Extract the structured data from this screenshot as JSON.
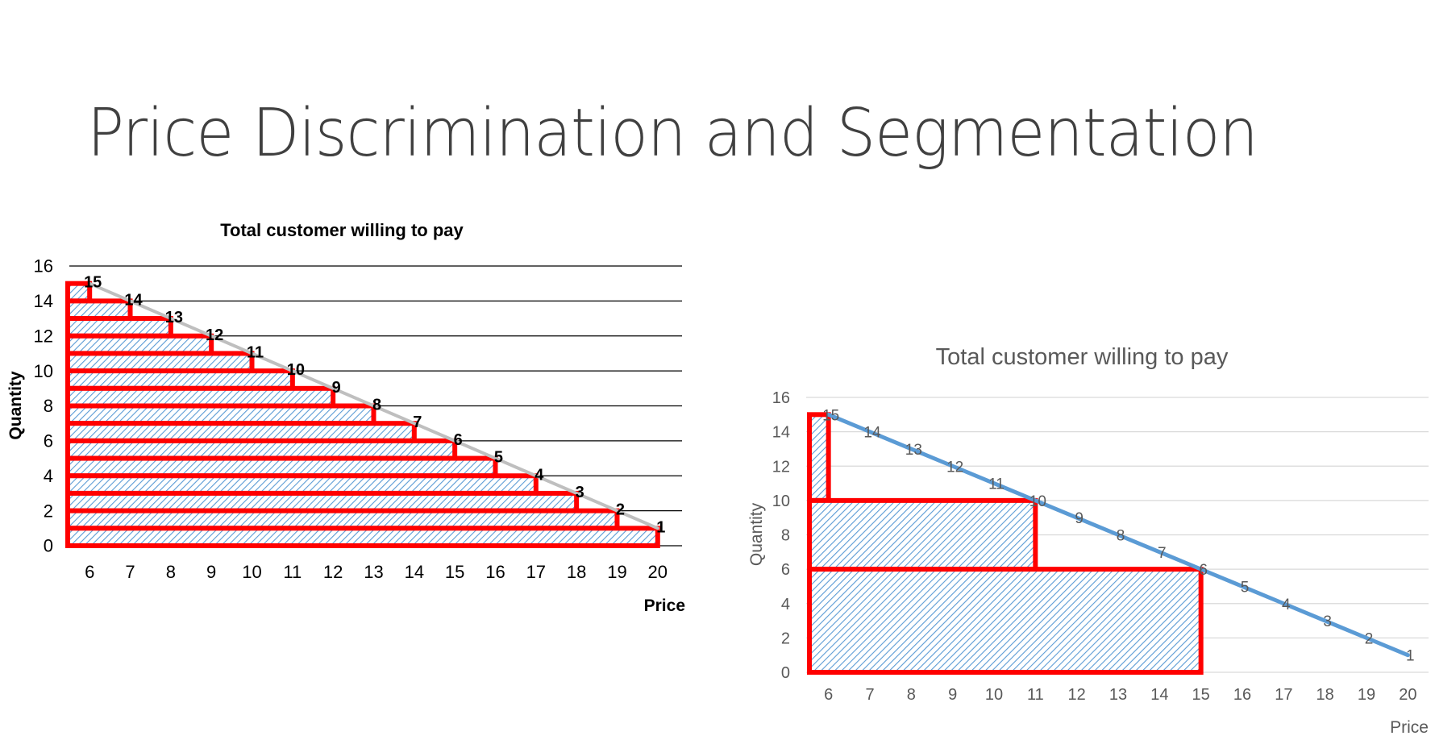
{
  "slide": {
    "title": "Price Discrimination and Segmentation"
  },
  "chart_data": [
    {
      "type": "area",
      "title": "Total customer willing to pay",
      "xlabel": "Price",
      "ylabel": "Quantity",
      "x": [
        6,
        7,
        8,
        9,
        10,
        11,
        12,
        13,
        14,
        15,
        16,
        17,
        18,
        19,
        20
      ],
      "xlim": [
        5.4,
        20.6
      ],
      "ylim": [
        0,
        16
      ],
      "yticks": [
        0,
        2,
        4,
        6,
        8,
        10,
        12,
        14,
        16
      ],
      "grid": true,
      "series": [
        {
          "values": [
            15,
            14,
            13,
            12,
            11,
            10,
            9,
            8,
            7,
            6,
            5,
            4,
            3,
            2,
            1
          ],
          "point_labels": [
            "15",
            "14",
            "13",
            "12",
            "11",
            "10",
            "9",
            "8",
            "7",
            "6",
            "5",
            "4",
            "3",
            "2",
            "1"
          ],
          "color": "#bfbfbf"
        }
      ],
      "segments": [
        {
          "price": 6,
          "quantity": 15
        },
        {
          "price": 7,
          "quantity": 14
        },
        {
          "price": 8,
          "quantity": 13
        },
        {
          "price": 9,
          "quantity": 12
        },
        {
          "price": 10,
          "quantity": 11
        },
        {
          "price": 11,
          "quantity": 10
        },
        {
          "price": 12,
          "quantity": 9
        },
        {
          "price": 13,
          "quantity": 8
        },
        {
          "price": 14,
          "quantity": 7
        },
        {
          "price": 15,
          "quantity": 6
        },
        {
          "price": 16,
          "quantity": 5
        },
        {
          "price": 17,
          "quantity": 4
        },
        {
          "price": 18,
          "quantity": 3
        },
        {
          "price": 19,
          "quantity": 2
        },
        {
          "price": 20,
          "quantity": 1
        }
      ],
      "segment_color": "#ff0000",
      "hatch_color": "#5b9bd5"
    },
    {
      "type": "line",
      "title": "Total customer willing to pay",
      "xlabel": "Price",
      "ylabel": "Quantity",
      "x": [
        6,
        7,
        8,
        9,
        10,
        11,
        12,
        13,
        14,
        15,
        16,
        17,
        18,
        19,
        20
      ],
      "xlim": [
        5.5,
        20.5
      ],
      "ylim": [
        0,
        16
      ],
      "yticks": [
        0,
        2,
        4,
        6,
        8,
        10,
        12,
        14,
        16
      ],
      "grid": true,
      "series": [
        {
          "values": [
            15,
            14,
            13,
            12,
            11,
            10,
            9,
            8,
            7,
            6,
            5,
            4,
            3,
            2,
            1
          ],
          "point_labels": [
            "15",
            "14",
            "13",
            "12",
            "11",
            "10",
            "9",
            "8",
            "7",
            "6",
            "5",
            "4",
            "3",
            "2",
            "1"
          ],
          "color": "#5b9bd5"
        }
      ],
      "segments": [
        {
          "price": 6,
          "quantity": 15
        },
        {
          "price": 11,
          "quantity": 10
        },
        {
          "price": 15,
          "quantity": 6
        }
      ],
      "segment_color": "#ff0000",
      "hatch_color": "#5b9bd5"
    }
  ]
}
